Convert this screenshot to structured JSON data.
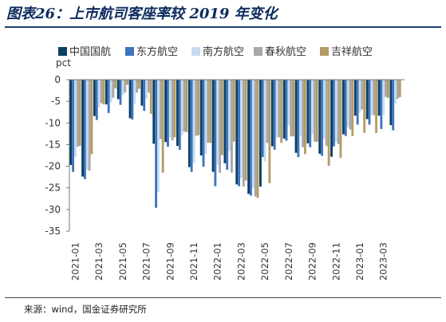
{
  "title": "图表26：上市航司客座率较 2019 年变化",
  "source": "来源：wind，国金证券研究所",
  "colors": {
    "中国国航": "#0d3f63",
    "东方航空": "#3d74bd",
    "南方航空": "#c5dcf2",
    "春秋航空": "#a8a8a8",
    "吉祥航空": "#b59c66",
    "title": "#0c2b5e"
  },
  "chart_data": {
    "type": "bar",
    "ylabel": "pct",
    "ylim": [
      -35,
      0
    ],
    "yticks": [
      0,
      -5,
      -10,
      -15,
      -20,
      -25,
      -30,
      -35
    ],
    "legend_position": "top",
    "categories": [
      "2021-01",
      "2021-02",
      "2021-03",
      "2021-04",
      "2021-05",
      "2021-06",
      "2021-07",
      "2021-08",
      "2021-09",
      "2021-10",
      "2021-11",
      "2021-12",
      "2022-01",
      "2022-02",
      "2022-03",
      "2022-04",
      "2022-05",
      "2022-06",
      "2022-07",
      "2022-08",
      "2022-09",
      "2022-10",
      "2022-11",
      "2022-12",
      "2023-01",
      "2023-02",
      "2023-03",
      "2023-04"
    ],
    "xtick_labels": [
      "2021-01",
      "2021-03",
      "2021-05",
      "2021-07",
      "2021-09",
      "2021-11",
      "2022-01",
      "2022-03",
      "2022-05",
      "2022-07",
      "2022-09",
      "2022-11",
      "2023-01",
      "2023-03"
    ],
    "series": [
      {
        "name": "中国国航",
        "values": [
          -19.7,
          -22.4,
          -8.4,
          -5.7,
          -4.5,
          -8.9,
          -6.0,
          -14.8,
          -14.4,
          -15.3,
          -20.2,
          -17.5,
          -21.3,
          -19.3,
          -24.2,
          -26.4,
          -24.7,
          -15.4,
          -13.6,
          -16.9,
          -14.7,
          -17.1,
          -17.8,
          -12.6,
          -8.3,
          -9.1,
          -8.3,
          -10.5
        ]
      },
      {
        "name": "东方航空",
        "values": [
          -21.3,
          -23.0,
          -9.3,
          -7.7,
          -5.8,
          -9.2,
          -7.2,
          -29.6,
          -15.5,
          -16.2,
          -21.3,
          -20.1,
          -24.6,
          -20.8,
          -24.6,
          -26.8,
          -17.9,
          -16.2,
          -14.1,
          -17.9,
          -15.6,
          -17.6,
          -15.4,
          -13.0,
          -10.4,
          -10.4,
          -11.4,
          -11.7
        ]
      },
      {
        "name": "南方航空",
        "values": [
          -17.8,
          -20.8,
          -6.3,
          -5.2,
          -3.6,
          -5.5,
          -4.4,
          -26.0,
          -13.3,
          -12.8,
          -19.2,
          -17.1,
          -19.6,
          -16.5,
          -22.7,
          -25.0,
          -18.9,
          -13.4,
          -10.5,
          -13.1,
          -12.6,
          -13.6,
          -14.4,
          -11.0,
          -7.6,
          -8.2,
          -8.1,
          -5.5
        ]
      },
      {
        "name": "春秋航空",
        "values": [
          -15.5,
          -21.0,
          -5.4,
          -4.2,
          -3.0,
          -3.0,
          -3.0,
          -13.7,
          -14.0,
          -12.0,
          -13.0,
          -14.6,
          -21.5,
          -21.5,
          -24.7,
          -27.0,
          -14.6,
          -13.3,
          -13.1,
          -15.6,
          -14.3,
          -15.3,
          -14.9,
          -11.5,
          -6.9,
          -8.2,
          -4.0,
          -4.4
        ]
      },
      {
        "name": "吉祥航空",
        "values": [
          -15.3,
          -17.2,
          -5.7,
          -2.0,
          -1.2,
          -2.1,
          -7.9,
          -21.5,
          -13.3,
          -12.1,
          -12.8,
          -14.6,
          -17.4,
          -14.3,
          -23.3,
          -27.3,
          -23.9,
          -14.6,
          -13.1,
          -17.2,
          -14.4,
          -19.9,
          -18.1,
          -13.0,
          -12.3,
          -12.3,
          -4.2,
          -4.0
        ]
      }
    ]
  }
}
